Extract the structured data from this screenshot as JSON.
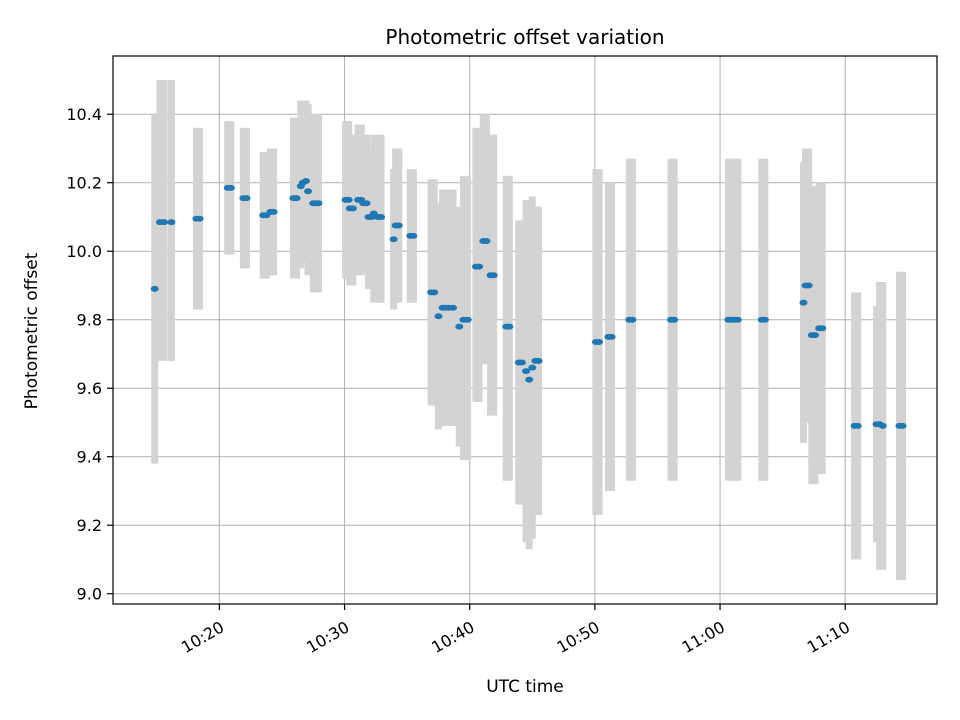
{
  "chart_data": {
    "type": "scatter",
    "title": "Photometric offset variation",
    "xlabel": "UTC time",
    "ylabel": "Photometric offset",
    "xlim": [
      "10:11:30",
      "11:17:20"
    ],
    "ylim": [
      8.97,
      10.57
    ],
    "x_ticks": [
      "10:20",
      "10:30",
      "10:40",
      "10:50",
      "11:00",
      "11:10"
    ],
    "y_ticks": [
      "9.0",
      "9.2",
      "9.4",
      "9.6",
      "9.8",
      "10.0",
      "10.2",
      "10.4"
    ],
    "grid": true,
    "colors": {
      "points": "#1f77b4",
      "error_bars": "#d3d3d3",
      "grid": "#b0b0b0"
    },
    "series": [
      {
        "x": [
          "10:14:50",
          "10:15:15",
          "10:15:35",
          "10:16:10",
          "10:18:10",
          "10:18:25",
          "10:20:40",
          "10:20:55",
          "10:21:55",
          "10:22:10",
          "10:23:30",
          "10:23:45",
          "10:24:05",
          "10:24:20",
          "10:25:55",
          "10:26:10",
          "10:26:30",
          "10:26:40",
          "10:26:55",
          "10:27:05",
          "10:27:30",
          "10:27:40",
          "10:27:55",
          "10:30:05",
          "10:30:20",
          "10:30:25",
          "10:30:40",
          "10:31:05",
          "10:31:20",
          "10:31:30",
          "10:31:45",
          "10:31:55",
          "10:32:10",
          "10:32:20",
          "10:32:40",
          "10:32:55",
          "10:33:55",
          "10:34:05",
          "10:34:20",
          "10:35:15",
          "10:35:30",
          "10:36:55",
          "10:37:10",
          "10:37:30",
          "10:37:50",
          "10:38:05",
          "10:38:20",
          "10:38:40",
          "10:39:10",
          "10:39:30",
          "10:39:50",
          "10:40:30",
          "10:40:45",
          "10:41:05",
          "10:41:20",
          "10:41:40",
          "10:41:55",
          "10:42:55",
          "10:43:10",
          "10:43:55",
          "10:44:10",
          "10:44:30",
          "10:44:45",
          "10:45:00",
          "10:45:15",
          "10:45:30",
          "10:50:05",
          "10:50:20",
          "10:51:05",
          "10:51:20",
          "10:52:45",
          "10:53:00",
          "10:56:05",
          "10:56:20",
          "11:00:40",
          "11:00:55",
          "11:01:10",
          "11:01:25",
          "11:03:20",
          "11:03:35",
          "11:06:40",
          "11:06:50",
          "11:07:05",
          "11:07:20",
          "11:07:35",
          "11:07:55",
          "11:08:10",
          "11:10:45",
          "11:11:00",
          "11:12:30",
          "11:12:45",
          "11:13:00",
          "11:14:20",
          "11:14:35"
        ],
        "y": [
          9.89,
          10.085,
          10.085,
          10.085,
          10.095,
          10.095,
          10.185,
          10.185,
          10.155,
          10.155,
          10.105,
          10.105,
          10.115,
          10.115,
          10.155,
          10.155,
          10.19,
          10.2,
          10.205,
          10.175,
          10.14,
          10.14,
          10.14,
          10.15,
          10.15,
          10.125,
          10.125,
          10.15,
          10.15,
          10.14,
          10.14,
          10.1,
          10.1,
          10.11,
          10.1,
          10.1,
          10.035,
          10.075,
          10.075,
          10.045,
          10.045,
          9.88,
          9.88,
          9.81,
          9.835,
          9.835,
          9.835,
          9.835,
          9.78,
          9.8,
          9.8,
          9.955,
          9.955,
          10.03,
          10.03,
          9.93,
          9.93,
          9.78,
          9.78,
          9.675,
          9.675,
          9.65,
          9.625,
          9.66,
          9.68,
          9.68,
          9.735,
          9.735,
          9.75,
          9.75,
          9.8,
          9.8,
          9.8,
          9.8,
          9.8,
          9.8,
          9.8,
          9.8,
          9.8,
          9.8,
          9.85,
          9.9,
          9.9,
          9.755,
          9.755,
          9.775,
          9.775,
          9.49,
          9.49,
          9.495,
          9.495,
          9.49,
          9.49,
          9.49
        ],
        "yerr_low": [
          9.38,
          9.68,
          9.68,
          9.68,
          9.83,
          9.83,
          9.99,
          9.99,
          9.95,
          9.95,
          9.92,
          9.92,
          9.93,
          9.93,
          9.92,
          9.92,
          9.95,
          9.97,
          9.97,
          9.93,
          9.88,
          9.88,
          9.88,
          9.92,
          9.92,
          9.9,
          9.9,
          9.93,
          9.93,
          9.94,
          9.94,
          9.89,
          9.89,
          9.85,
          9.85,
          9.85,
          9.83,
          9.85,
          9.85,
          9.85,
          9.85,
          9.55,
          9.55,
          9.48,
          9.49,
          9.49,
          9.49,
          9.49,
          9.43,
          9.39,
          9.39,
          9.56,
          9.56,
          9.67,
          9.67,
          9.52,
          9.52,
          9.33,
          9.33,
          9.26,
          9.26,
          9.15,
          9.13,
          9.16,
          9.23,
          9.23,
          9.23,
          9.23,
          9.3,
          9.3,
          9.33,
          9.33,
          9.33,
          9.33,
          9.33,
          9.33,
          9.33,
          9.33,
          9.33,
          9.33,
          9.44,
          9.5,
          9.5,
          9.32,
          9.32,
          9.35,
          9.35,
          9.1,
          9.1,
          9.15,
          9.07,
          9.07,
          9.04,
          9.04
        ],
        "yerr_high": [
          10.4,
          10.5,
          10.5,
          10.5,
          10.36,
          10.36,
          10.38,
          10.38,
          10.36,
          10.36,
          10.29,
          10.29,
          10.3,
          10.3,
          10.39,
          10.39,
          10.44,
          10.44,
          10.44,
          10.43,
          10.4,
          10.4,
          10.4,
          10.38,
          10.38,
          10.34,
          10.34,
          10.37,
          10.37,
          10.34,
          10.34,
          10.3,
          10.3,
          10.34,
          10.34,
          10.34,
          10.24,
          10.3,
          10.3,
          10.24,
          10.24,
          10.21,
          10.21,
          10.14,
          10.18,
          10.18,
          10.18,
          10.18,
          10.13,
          10.22,
          10.22,
          10.36,
          10.36,
          10.4,
          10.4,
          10.34,
          10.34,
          10.22,
          10.22,
          10.09,
          10.09,
          10.15,
          10.13,
          10.16,
          10.13,
          10.13,
          10.24,
          10.24,
          10.2,
          10.2,
          10.27,
          10.27,
          10.27,
          10.27,
          10.27,
          10.27,
          10.27,
          10.27,
          10.27,
          10.27,
          10.26,
          10.3,
          10.3,
          10.19,
          10.19,
          10.2,
          10.2,
          9.88,
          9.88,
          9.84,
          9.91,
          9.91,
          9.94,
          9.94
        ]
      }
    ]
  }
}
